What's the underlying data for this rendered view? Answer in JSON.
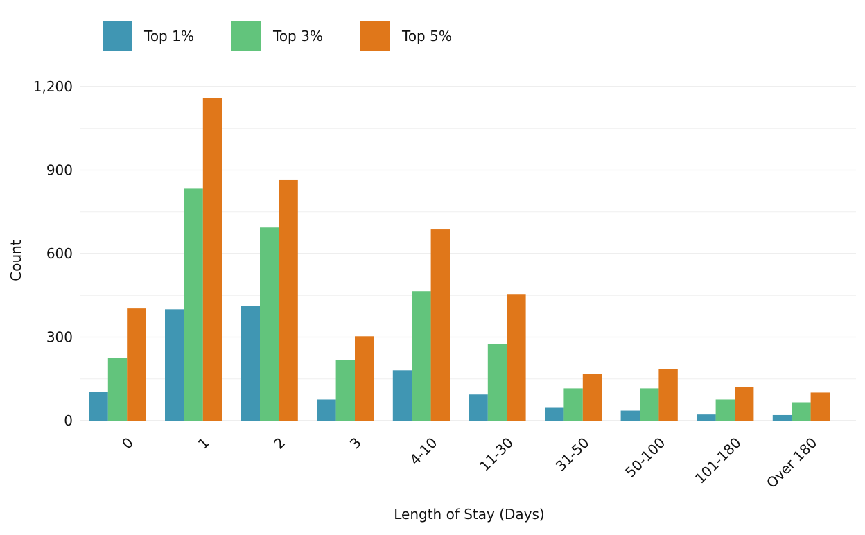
{
  "chart_data": {
    "type": "bar",
    "title": "",
    "xlabel": "Length of Stay (Days)",
    "ylabel": "Count",
    "categories": [
      "0",
      "1",
      "2",
      "3",
      "4-10",
      "11-30",
      "31-50",
      "50-100",
      "101-180",
      "Over 180"
    ],
    "series": [
      {
        "name": "Top 1%",
        "color": "#4096b3",
        "values": [
          103,
          400,
          412,
          76,
          181,
          94,
          46,
          36,
          22,
          20
        ]
      },
      {
        "name": "Top 3%",
        "color": "#62c47c",
        "values": [
          226,
          833,
          694,
          218,
          465,
          276,
          116,
          116,
          76,
          66
        ]
      },
      {
        "name": "Top 5%",
        "color": "#e0771a",
        "values": [
          403,
          1159,
          864,
          303,
          687,
          455,
          168,
          185,
          121,
          101
        ]
      }
    ],
    "ylim": [
      0,
      1200
    ],
    "yticks": [
      0,
      300,
      600,
      900,
      1200
    ],
    "ytick_labels": [
      "0",
      "300",
      "600",
      "900",
      "1,200"
    ],
    "grid": true,
    "legend_position": "top-left",
    "x_tick_rotation": "45-degrees"
  }
}
